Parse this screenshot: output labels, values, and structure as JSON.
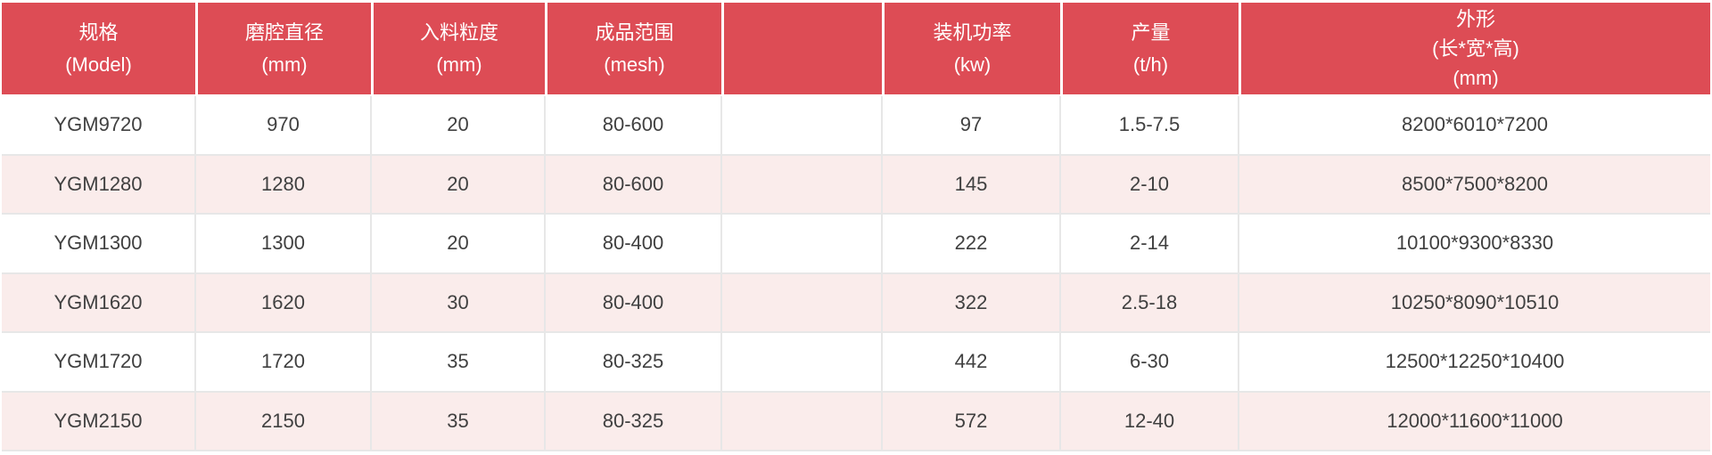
{
  "colors": {
    "header_bg": "#dd4c55",
    "header_text": "#ffffff",
    "row_stripe_pink": "#faeceb",
    "row_white": "#ffffff",
    "grid_line": "#e7e7e7",
    "body_text": "#404040"
  },
  "table": {
    "header": {
      "model": "规格\n(Model)",
      "chamber": "磨腔直径\n(mm)",
      "feed": "入料粒度\n(mm)",
      "mesh": "成品范围\n(mesh)",
      "power": "装机功率\n(kw)",
      "capacity": "产量\n(t/h)",
      "dims": "外形\n(长*宽*高)\n(mm)"
    },
    "rows": [
      {
        "model": "YGM9720",
        "chamber": "970",
        "feed": "20",
        "mesh": "80-600",
        "power": "97",
        "capacity": "1.5-7.5",
        "dims": "8200*6010*7200"
      },
      {
        "model": "YGM1280",
        "chamber": "1280",
        "feed": "20",
        "mesh": "80-600",
        "power": "145",
        "capacity": "2-10",
        "dims": "8500*7500*8200"
      },
      {
        "model": "YGM1300",
        "chamber": "1300",
        "feed": "20",
        "mesh": "80-400",
        "power": "222",
        "capacity": "2-14",
        "dims": "10100*9300*8330"
      },
      {
        "model": "YGM1620",
        "chamber": "1620",
        "feed": "30",
        "mesh": "80-400",
        "power": "322",
        "capacity": "2.5-18",
        "dims": "10250*8090*10510"
      },
      {
        "model": "YGM1720",
        "chamber": "1720",
        "feed": "35",
        "mesh": "80-325",
        "power": "442",
        "capacity": "6-30",
        "dims": "12500*12250*10400"
      },
      {
        "model": "YGM2150",
        "chamber": "2150",
        "feed": "35",
        "mesh": "80-325",
        "power": "572",
        "capacity": "12-40",
        "dims": "12000*11600*11000"
      }
    ]
  },
  "chart_data": {
    "type": "table",
    "title": "",
    "columns": [
      "规格 (Model)",
      "磨腔直径 (mm)",
      "入料粒度 (mm)",
      "成品范围 (mesh)",
      "装机功率 (kw)",
      "产量 (t/h)",
      "外形 (长*宽*高) (mm)"
    ],
    "rows": [
      [
        "YGM9720",
        "970",
        "20",
        "80-600",
        "97",
        "1.5-7.5",
        "8200*6010*7200"
      ],
      [
        "YGM1280",
        "1280",
        "20",
        "80-600",
        "145",
        "2-10",
        "8500*7500*8200"
      ],
      [
        "YGM1300",
        "1300",
        "20",
        "80-400",
        "222",
        "2-14",
        "10100*9300*8330"
      ],
      [
        "YGM1620",
        "1620",
        "30",
        "80-400",
        "322",
        "2.5-18",
        "10250*8090*10510"
      ],
      [
        "YGM1720",
        "1720",
        "35",
        "80-325",
        "442",
        "6-30",
        "12500*12250*10400"
      ],
      [
        "YGM2150",
        "2150",
        "35",
        "80-325",
        "572",
        "12-40",
        "12000*11600*11000"
      ]
    ]
  }
}
